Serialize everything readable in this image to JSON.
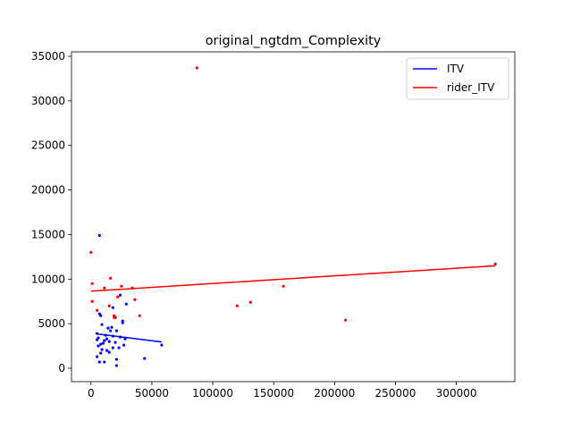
{
  "chart_data": {
    "type": "scatter",
    "title": "original_ngtdm_Complexity",
    "xlabel": "",
    "ylabel": "",
    "xlim": [
      -16000,
      348000
    ],
    "ylim": [
      -1500,
      35500
    ],
    "x_ticks": [
      0,
      50000,
      100000,
      150000,
      200000,
      250000,
      300000
    ],
    "y_ticks": [
      0,
      5000,
      10000,
      15000,
      20000,
      25000,
      30000,
      35000
    ],
    "grid": false,
    "legend_position": "top-right",
    "series": [
      {
        "name": "ITV",
        "color": "#0000ff",
        "fit_line": {
          "x": [
            5000,
            58000
          ],
          "y": [
            3850,
            2950
          ]
        },
        "points": [
          [
            7000,
            14900
          ],
          [
            24000,
            8200
          ],
          [
            29000,
            7200
          ],
          [
            18000,
            6800
          ],
          [
            7000,
            6100
          ],
          [
            8000,
            5900
          ],
          [
            20000,
            5700
          ],
          [
            26000,
            5300
          ],
          [
            26000,
            5100
          ],
          [
            9000,
            4900
          ],
          [
            17000,
            4600
          ],
          [
            14000,
            4500
          ],
          [
            16000,
            4200
          ],
          [
            21000,
            4200
          ],
          [
            5000,
            3900
          ],
          [
            12000,
            3700
          ],
          [
            18000,
            3600
          ],
          [
            24000,
            3500
          ],
          [
            6000,
            3400
          ],
          [
            13000,
            3300
          ],
          [
            28000,
            3300
          ],
          [
            5000,
            3200
          ],
          [
            11000,
            3100
          ],
          [
            15000,
            3000
          ],
          [
            20000,
            2900
          ],
          [
            10000,
            2800
          ],
          [
            8000,
            2700
          ],
          [
            27000,
            2600
          ],
          [
            58000,
            2600
          ],
          [
            6000,
            2500
          ],
          [
            18000,
            2300
          ],
          [
            23000,
            2300
          ],
          [
            9000,
            2100
          ],
          [
            13000,
            2000
          ],
          [
            15000,
            1800
          ],
          [
            8000,
            1700
          ],
          [
            5000,
            1300
          ],
          [
            44000,
            1100
          ],
          [
            21000,
            1000
          ],
          [
            7000,
            700
          ],
          [
            11000,
            700
          ],
          [
            21000,
            300
          ]
        ]
      },
      {
        "name": "rider_ITV",
        "color": "#ff0000",
        "fit_line": {
          "x": [
            0,
            332000
          ],
          "y": [
            8650,
            11500
          ]
        },
        "points": [
          [
            87000,
            33700
          ],
          [
            0,
            13000
          ],
          [
            16000,
            10100
          ],
          [
            332000,
            11700
          ],
          [
            1000,
            9500
          ],
          [
            25000,
            9200
          ],
          [
            11000,
            9000
          ],
          [
            34000,
            9000
          ],
          [
            158000,
            9200
          ],
          [
            22000,
            8000
          ],
          [
            36000,
            7700
          ],
          [
            1000,
            7500
          ],
          [
            15000,
            7000
          ],
          [
            120000,
            7000
          ],
          [
            131000,
            7400
          ],
          [
            5000,
            6500
          ],
          [
            40000,
            5900
          ],
          [
            19000,
            5900
          ],
          [
            19000,
            5700
          ],
          [
            209000,
            5400
          ]
        ]
      }
    ]
  }
}
